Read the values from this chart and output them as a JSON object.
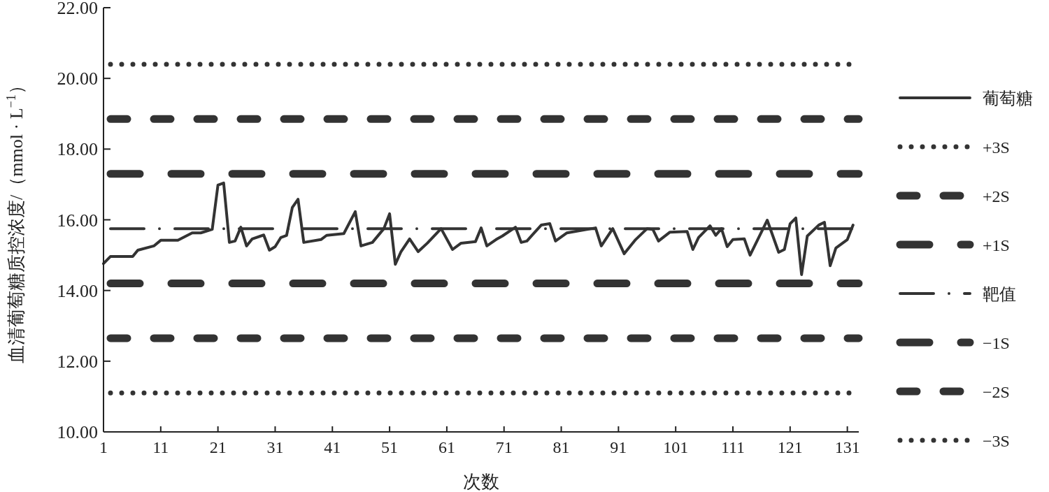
{
  "chart_data": {
    "type": "line",
    "xlabel": "次数",
    "ylabel": "血清葡萄糖质控浓度/（mmol · L$^{−1}$）",
    "xlim": [
      1,
      133
    ],
    "xticks": [
      1,
      11,
      21,
      31,
      41,
      51,
      61,
      71,
      81,
      91,
      101,
      111,
      121,
      131
    ],
    "ylim": [
      10,
      22
    ],
    "yticks": [
      {
        "value": 10,
        "label": "10.00"
      },
      {
        "value": 12,
        "label": "12.00"
      },
      {
        "value": 14,
        "label": "14.00"
      },
      {
        "value": 16,
        "label": "16.00"
      },
      {
        "value": 18,
        "label": "18.00"
      },
      {
        "value": 20,
        "label": "20.00"
      },
      {
        "value": 22,
        "label": "22.00"
      }
    ],
    "series": [
      {
        "name": "葡萄糖",
        "color": "#333333",
        "line_style": "solid",
        "x": [
          1,
          2.2,
          6.1,
          7,
          9.8,
          11,
          14,
          16.5,
          18,
          20,
          21,
          22,
          23,
          24,
          25,
          26,
          27,
          29,
          30,
          31,
          32,
          33,
          34,
          35,
          36,
          39,
          40,
          43,
          45,
          46,
          48,
          50,
          51,
          52,
          53,
          54.5,
          56,
          57.6,
          60,
          62,
          63.5,
          66,
          67,
          68,
          69.6,
          70.7,
          73,
          74,
          75,
          77.5,
          79,
          80,
          82,
          87,
          88,
          90,
          92,
          94,
          96,
          97,
          98,
          100,
          103,
          104,
          105,
          107,
          108,
          109,
          110,
          111,
          113,
          114,
          117,
          119,
          120,
          121,
          122,
          123,
          124,
          126,
          127,
          128,
          129,
          131,
          132
        ],
        "values": [
          14.76,
          14.96,
          14.96,
          15.14,
          15.26,
          15.42,
          15.42,
          15.63,
          15.63,
          15.73,
          16.98,
          17.04,
          15.36,
          15.4,
          15.79,
          15.26,
          15.46,
          15.57,
          15.14,
          15.24,
          15.5,
          15.56,
          16.35,
          16.58,
          15.36,
          15.44,
          15.56,
          15.61,
          16.23,
          15.26,
          15.36,
          15.75,
          16.17,
          14.74,
          15.1,
          15.46,
          15.1,
          15.34,
          15.75,
          15.16,
          15.34,
          15.38,
          15.77,
          15.26,
          15.44,
          15.54,
          15.79,
          15.36,
          15.4,
          15.85,
          15.89,
          15.4,
          15.63,
          15.77,
          15.26,
          15.75,
          15.04,
          15.44,
          15.75,
          15.73,
          15.4,
          15.65,
          15.67,
          15.16,
          15.5,
          15.83,
          15.56,
          15.75,
          15.24,
          15.44,
          15.46,
          15.0,
          15.99,
          15.08,
          15.16,
          15.89,
          16.05,
          14.45,
          15.54,
          15.85,
          15.93,
          14.7,
          15.2,
          15.44,
          15.85
        ]
      }
    ],
    "ref_lines": [
      {
        "axis": "y",
        "value": 20.4,
        "label": "+3S",
        "color": "#333333",
        "line_style": "dotted"
      },
      {
        "axis": "y",
        "value": 18.85,
        "label": "+2S",
        "color": "#333333",
        "line_style": "dashed"
      },
      {
        "axis": "y",
        "value": 17.3,
        "label": "+1S",
        "color": "#333333",
        "line_style": "longdash"
      },
      {
        "axis": "y",
        "value": 15.75,
        "label": "靶值",
        "color": "#333333",
        "line_style": "dashdot"
      },
      {
        "axis": "y",
        "value": 14.2,
        "label": "−1S",
        "color": "#333333",
        "line_style": "longdash"
      },
      {
        "axis": "y",
        "value": 12.65,
        "label": "−2S",
        "color": "#333333",
        "line_style": "dashed"
      },
      {
        "axis": "y",
        "value": 11.1,
        "label": "−3S",
        "color": "#333333",
        "line_style": "dotted"
      }
    ],
    "grid": false,
    "legend": "right"
  }
}
